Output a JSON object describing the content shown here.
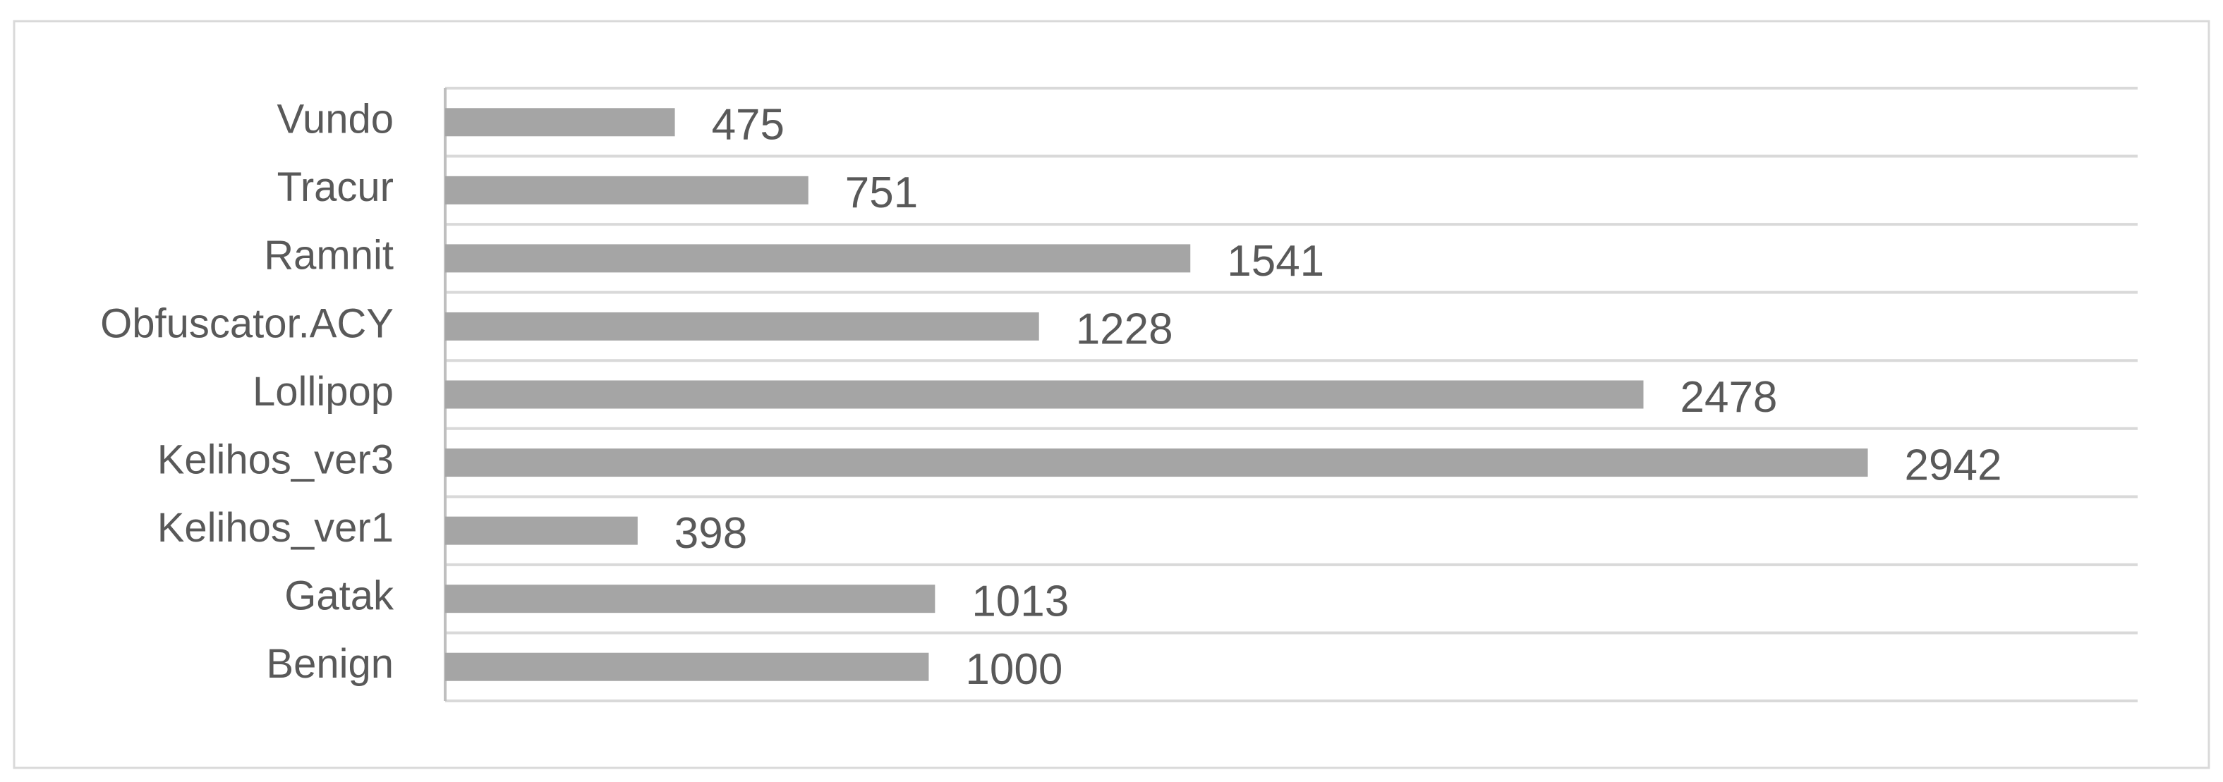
{
  "chart_data": {
    "type": "bar",
    "orientation": "horizontal",
    "categories": [
      "Benign",
      "Gatak",
      "Kelihos_ver1",
      "Kelihos_ver3",
      "Lollipop",
      "Obfuscator.ACY",
      "Ramnit",
      "Tracur",
      "Vundo"
    ],
    "values": [
      1000,
      1013,
      398,
      2942,
      2478,
      1228,
      1541,
      751,
      475
    ],
    "color": "#a5a5a5",
    "xlim": [
      0,
      3500
    ]
  }
}
